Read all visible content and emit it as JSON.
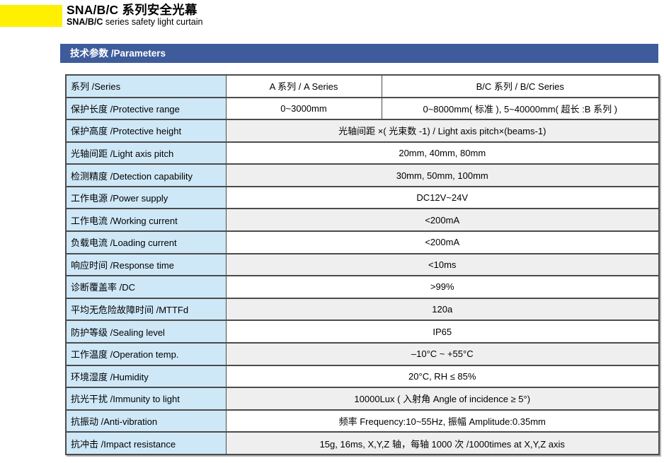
{
  "header": {
    "title_model": "SNA/B/C",
    "title_zh": "系列安全光幕",
    "subtitle_model": "SNA/B/C",
    "subtitle_en": "series safety light curtain"
  },
  "section": {
    "title": "技术参数 /Parameters"
  },
  "colors": {
    "accent_yellow": "#ffef00",
    "section_blue": "#3e5c9c",
    "label_cell_blue": "#cfe8f8",
    "stripe_gray": "#efefef",
    "table_border": "#4b4b4b"
  },
  "table": {
    "header": {
      "label": "系列 /Series",
      "col_a": "A 系列 / A Series",
      "col_bc": "B/C 系列 / B/C Series"
    },
    "rows": [
      {
        "label": "保护长度 /Protective range",
        "values": [
          "0~3000mm",
          "0~8000mm( 标准 ), 5~40000mm( 超长 :B 系列 )"
        ]
      },
      {
        "label": "保护高度 /Protective height",
        "values": [
          "光轴间距 ×( 光束数 -1) / Light axis pitch×(beams-1)"
        ]
      },
      {
        "label": "光轴间距 /Light axis pitch",
        "values": [
          "20mm, 40mm, 80mm"
        ]
      },
      {
        "label": "检测精度 /Detection capability",
        "values": [
          "30mm, 50mm, 100mm"
        ]
      },
      {
        "label": "工作电源 /Power supply",
        "values": [
          "DC12V~24V"
        ]
      },
      {
        "label": "工作电流 /Working current",
        "values": [
          "<200mA"
        ]
      },
      {
        "label": "负载电流 /Loading current",
        "values": [
          "<200mA"
        ]
      },
      {
        "label": "响应时间 /Response time",
        "values": [
          "<10ms"
        ]
      },
      {
        "label": "诊断覆盖率 /DC",
        "values": [
          ">99%"
        ]
      },
      {
        "label": "平均无危险故障时间 /MTTFd",
        "values": [
          "120a"
        ]
      },
      {
        "label": "防护等级 /Sealing level",
        "values": [
          "IP65"
        ]
      },
      {
        "label": "工作温度 /Operation temp.",
        "values": [
          "–10°C ~ +55°C"
        ]
      },
      {
        "label": "环境湿度 /Humidity",
        "values": [
          "20°C, RH ≤ 85%"
        ]
      },
      {
        "label": "抗光干扰 /Immunity to light",
        "values": [
          "10000Lux ( 入射角 Angle of incidence ≥ 5°)"
        ]
      },
      {
        "label": "抗振动 /Anti-vibration",
        "values": [
          "频率 Frequency:10~55Hz, 振幅 Amplitude:0.35mm"
        ]
      },
      {
        "label": "抗冲击 /Impact resistance",
        "values": [
          "15g, 16ms, X,Y,Z 轴，每轴 1000 次 /1000times at X,Y,Z axis"
        ]
      }
    ]
  }
}
